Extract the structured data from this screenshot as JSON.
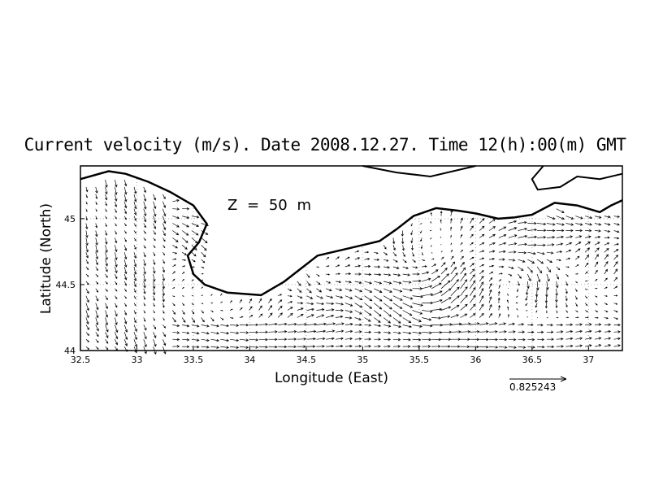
{
  "title": "Current velocity (m/s). Date 2008.12.27. Time 12(h):00(m) GMT",
  "depth_label": "Z = 50 m",
  "axes": {
    "xlabel": "Longitude (East)",
    "ylabel": "Latitude (North)",
    "xlim": [
      32.5,
      37.3
    ],
    "ylim": [
      44.0,
      45.4
    ],
    "xticks": [
      "32.5",
      "33",
      "33.5",
      "34",
      "34.5",
      "35",
      "35.5",
      "36",
      "36.5",
      "37"
    ],
    "yticks": [
      "44",
      "44.5",
      "45"
    ],
    "grid": "dotted"
  },
  "reference_vector": {
    "value": "0.825243",
    "units": "m/s"
  },
  "colors": {
    "coast": "#000000",
    "vectors": "#000000",
    "grid": "#b0b0b0"
  },
  "chart_data": {
    "type": "vector-field",
    "title": "Current velocity (m/s). Date 2008.12.27. Time 12(h):00(m) GMT",
    "xlabel": "Longitude (East)",
    "ylabel": "Latitude (North)",
    "xlim": [
      32.5,
      37.3
    ],
    "ylim": [
      44.0,
      45.4
    ],
    "reference_speed": 0.825243,
    "coastline": [
      [
        32.5,
        45.3
      ],
      [
        32.75,
        45.36
      ],
      [
        32.9,
        45.34
      ],
      [
        33.1,
        45.28
      ],
      [
        33.3,
        45.2
      ],
      [
        33.5,
        45.1
      ],
      [
        33.62,
        44.96
      ],
      [
        33.55,
        44.82
      ],
      [
        33.45,
        44.72
      ],
      [
        33.5,
        44.58
      ],
      [
        33.6,
        44.5
      ],
      [
        33.8,
        44.44
      ],
      [
        34.1,
        44.42
      ],
      [
        34.3,
        44.52
      ],
      [
        34.45,
        44.62
      ],
      [
        34.6,
        44.72
      ],
      [
        34.8,
        44.76
      ],
      [
        35.0,
        44.8
      ],
      [
        35.15,
        44.83
      ],
      [
        35.3,
        44.92
      ],
      [
        35.45,
        45.02
      ],
      [
        35.65,
        45.08
      ],
      [
        35.85,
        45.06
      ],
      [
        36.0,
        45.04
      ],
      [
        36.2,
        45.0
      ],
      [
        36.35,
        45.01
      ],
      [
        36.5,
        45.03
      ],
      [
        36.7,
        45.12
      ],
      [
        36.9,
        45.1
      ],
      [
        37.1,
        45.05
      ],
      [
        37.2,
        45.1
      ],
      [
        37.3,
        45.14
      ]
    ]
  }
}
